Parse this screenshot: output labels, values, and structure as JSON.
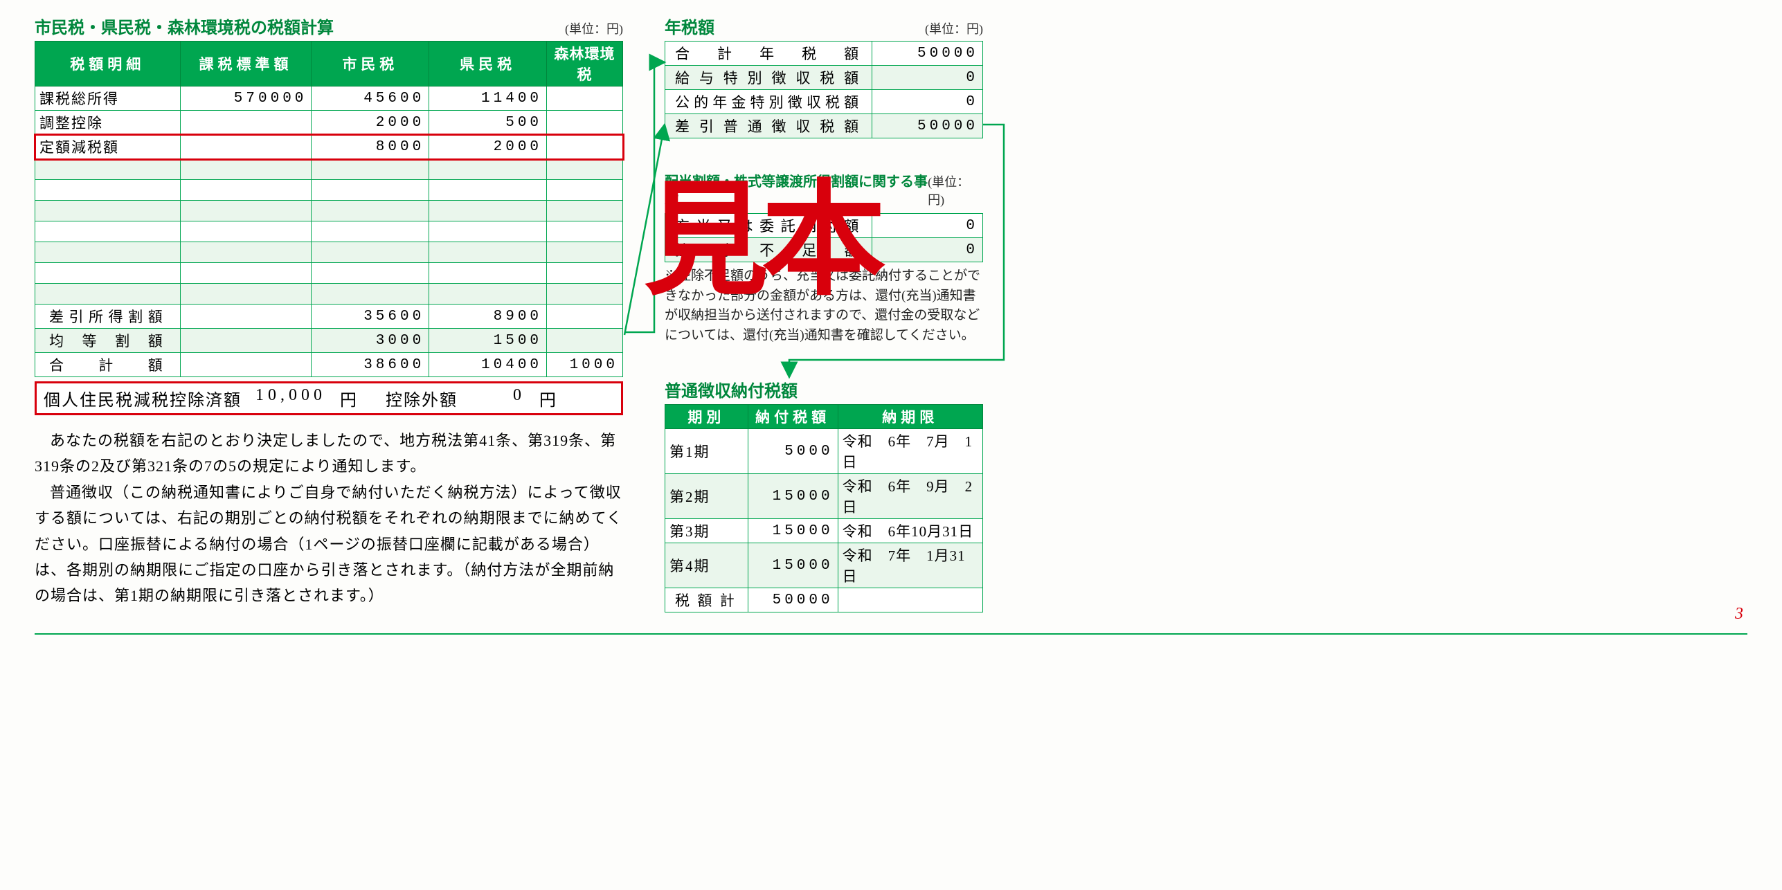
{
  "colors": {
    "green_dark": "#00873c",
    "green": "#00a650",
    "green_light": "#eaf6ec",
    "red": "#d8000c",
    "bg": "#fdfdfb"
  },
  "watermark": "見本",
  "left": {
    "title": "市民税・県民税・森林環境税の税額計算",
    "unit": "(単位：円)",
    "headers": [
      "税額明細",
      "課税標準額",
      "市民税",
      "県民税",
      "森林環境税"
    ],
    "rows": [
      {
        "label": "課税総所得",
        "std": "570000",
        "city": "45600",
        "pref": "11400",
        "forest": ""
      },
      {
        "label": "調整控除",
        "std": "",
        "city": "2000",
        "pref": "500",
        "forest": ""
      },
      {
        "label": "定額減税額",
        "std": "",
        "city": "8000",
        "pref": "2000",
        "forest": "",
        "highlight": true
      }
    ],
    "blank_rows": 7,
    "footer": [
      {
        "label": "差引所得割額",
        "city": "35600",
        "pref": "8900",
        "forest": ""
      },
      {
        "label": "均等割額",
        "city": "3000",
        "pref": "1500",
        "forest": ""
      },
      {
        "label": "合計額",
        "city": "38600",
        "pref": "10400",
        "forest": "1000"
      }
    ],
    "deduct": {
      "label1": "個人住民税減税控除済額",
      "val1": "10,000",
      "unit1": "円",
      "label2": "控除外額",
      "val2": "0",
      "unit2": "円"
    },
    "body": [
      "あなたの税額を右記のとおり決定しましたので、地方税法第41条、第319条、第319条の2及び第321条の7の5の規定により通知します。",
      "普通徴収（この納税通知書によりご自身で納付いただく納税方法）によって徴収する額については、右記の期別ごとの納付税額をそれぞれの納期限までに納めてください。口座振替による納付の場合（1ページの振替口座欄に記載がある場合）は、各期別の納期限にご指定の口座から引き落とされます。（納付方法が全期前納の場合は、第1期の納期限に引き落とされます。）"
    ]
  },
  "annual": {
    "title": "年税額",
    "unit": "(単位：円)",
    "rows": [
      {
        "label": "合計年税額",
        "val": "50000"
      },
      {
        "label": "給与特別徴収税額",
        "val": "0"
      },
      {
        "label": "公的年金特別徴収税額",
        "val": "0"
      },
      {
        "label": "差引普通徴収税額",
        "val": "50000"
      }
    ]
  },
  "dividend": {
    "title": "配当割額・株式等譲渡所得割額に関する事項",
    "unit": "(単位：円)",
    "rows": [
      {
        "label": "充当又は委託納付額",
        "val": "0"
      },
      {
        "label": "控除不足額",
        "val": "0"
      }
    ],
    "note": "※控除不足額のうち、充当又は委託納付することができなかった部分の金額がある方は、還付(充当)通知書が収納担当から送付されますので、還付金の受取などについては、還付(充当)通知書を確認してください。"
  },
  "ordinary": {
    "title": "普通徴収納付税額",
    "headers": [
      "期別",
      "納付税額",
      "納期限"
    ],
    "rows": [
      {
        "period": "第1期",
        "amount": "5000",
        "due": "令和　6年　7月　1日"
      },
      {
        "period": "第2期",
        "amount": "15000",
        "due": "令和　6年　9月　2日"
      },
      {
        "period": "第3期",
        "amount": "15000",
        "due": "令和　6年10月31日"
      },
      {
        "period": "第4期",
        "amount": "15000",
        "due": "令和　7年　1月31日"
      }
    ],
    "total_label": "税額計",
    "total": "50000"
  },
  "page": "3"
}
